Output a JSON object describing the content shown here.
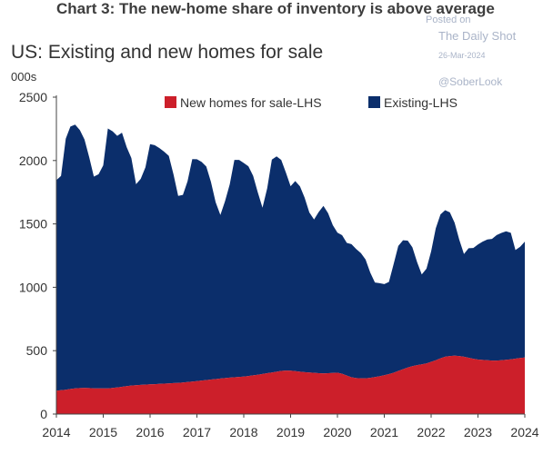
{
  "header": {
    "page_title": "Chart 3: The new-home share of inventory is above average"
  },
  "watermark": {
    "posted": "Posted on",
    "source": "The Daily Shot",
    "date": "26-Mar-2024",
    "handle": "@SoberLook"
  },
  "colors": {
    "new_homes": "#cc1f2a",
    "existing": "#0b2e6b",
    "axis_text": "#333333"
  },
  "chart_data": {
    "type": "area",
    "stacked": true,
    "title": "US: Existing and new homes for sale",
    "ylabel": "000s",
    "xlabel": "",
    "ylim": [
      0,
      2500
    ],
    "yticks": [
      0,
      500,
      1000,
      1500,
      2000,
      2500
    ],
    "xlim": [
      2014,
      2024
    ],
    "xticks": [
      "2014",
      "2015",
      "2016",
      "2017",
      "2018",
      "2019",
      "2020",
      "2021",
      "2022",
      "2023",
      "2024"
    ],
    "legend_position": "top",
    "grid": false,
    "x": [
      2014.0,
      2014.1,
      2014.2,
      2014.3,
      2014.4,
      2014.5,
      2014.6,
      2014.7,
      2014.8,
      2014.9,
      2015.0,
      2015.1,
      2015.2,
      2015.3,
      2015.4,
      2015.5,
      2015.6,
      2015.7,
      2015.8,
      2015.9,
      2016.0,
      2016.1,
      2016.2,
      2016.3,
      2016.4,
      2016.5,
      2016.6,
      2016.7,
      2016.8,
      2016.9,
      2017.0,
      2017.1,
      2017.2,
      2017.3,
      2017.4,
      2017.5,
      2017.6,
      2017.7,
      2017.8,
      2017.9,
      2018.0,
      2018.1,
      2018.2,
      2018.3,
      2018.4,
      2018.5,
      2018.6,
      2018.7,
      2018.8,
      2018.9,
      2019.0,
      2019.1,
      2019.2,
      2019.3,
      2019.4,
      2019.5,
      2019.6,
      2019.7,
      2019.8,
      2019.9,
      2020.0,
      2020.1,
      2020.2,
      2020.3,
      2020.4,
      2020.5,
      2020.6,
      2020.7,
      2020.8,
      2020.9,
      2021.0,
      2021.1,
      2021.2,
      2021.3,
      2021.4,
      2021.5,
      2021.6,
      2021.7,
      2021.8,
      2021.9,
      2022.0,
      2022.1,
      2022.2,
      2022.3,
      2022.4,
      2022.5,
      2022.6,
      2022.7,
      2022.8,
      2022.9,
      2023.0,
      2023.1,
      2023.2,
      2023.3,
      2023.4,
      2023.5,
      2023.6,
      2023.7,
      2023.8,
      2023.9,
      2024.0
    ],
    "series": [
      {
        "name": "New homes for sale-LHS",
        "values": [
          185,
          188,
          192,
          198,
          203,
          205,
          206,
          205,
          203,
          202,
          202,
          203,
          206,
          210,
          215,
          220,
          225,
          228,
          230,
          232,
          234,
          236,
          238,
          240,
          242,
          244,
          246,
          249,
          252,
          256,
          260,
          264,
          268,
          272,
          276,
          280,
          284,
          287,
          290,
          293,
          296,
          300,
          305,
          310,
          316,
          322,
          328,
          334,
          340,
          343,
          342,
          338,
          334,
          330,
          328,
          325,
          322,
          320,
          322,
          324,
          326,
          318,
          304,
          290,
          284,
          282,
          282,
          286,
          292,
          298,
          306,
          315,
          326,
          340,
          354,
          367,
          378,
          386,
          392,
          400,
          412,
          425,
          440,
          452,
          458,
          460,
          458,
          452,
          444,
          436,
          430,
          427,
          424,
          422,
          422,
          424,
          428,
          432,
          437,
          442,
          446
        ]
      },
      {
        "name": "Existing-LHS",
        "values": [
          1660,
          1690,
          1980,
          2070,
          2080,
          2035,
          1960,
          1820,
          1670,
          1690,
          1760,
          2050,
          2025,
          1985,
          2005,
          1885,
          1795,
          1585,
          1625,
          1715,
          1895,
          1885,
          1860,
          1830,
          1795,
          1645,
          1475,
          1480,
          1585,
          1755,
          1750,
          1725,
          1685,
          1560,
          1395,
          1290,
          1395,
          1525,
          1715,
          1712,
          1685,
          1655,
          1575,
          1440,
          1312,
          1460,
          1680,
          1699,
          1665,
          1560,
          1455,
          1500,
          1462,
          1378,
          1262,
          1210,
          1272,
          1322,
          1263,
          1166,
          1105,
          1093,
          1046,
          1050,
          1018,
          988,
          938,
          830,
          746,
          734,
          719,
          727,
          858,
          986,
          1017,
          1001,
          937,
          812,
          710,
          747,
          871,
          1040,
          1135,
          1156,
          1133,
          1050,
          918,
          810,
          864,
          874,
          908,
          933,
          953,
          960,
          990,
          1005,
          1013,
          998,
          857,
          878,
          914
        ]
      }
    ]
  }
}
